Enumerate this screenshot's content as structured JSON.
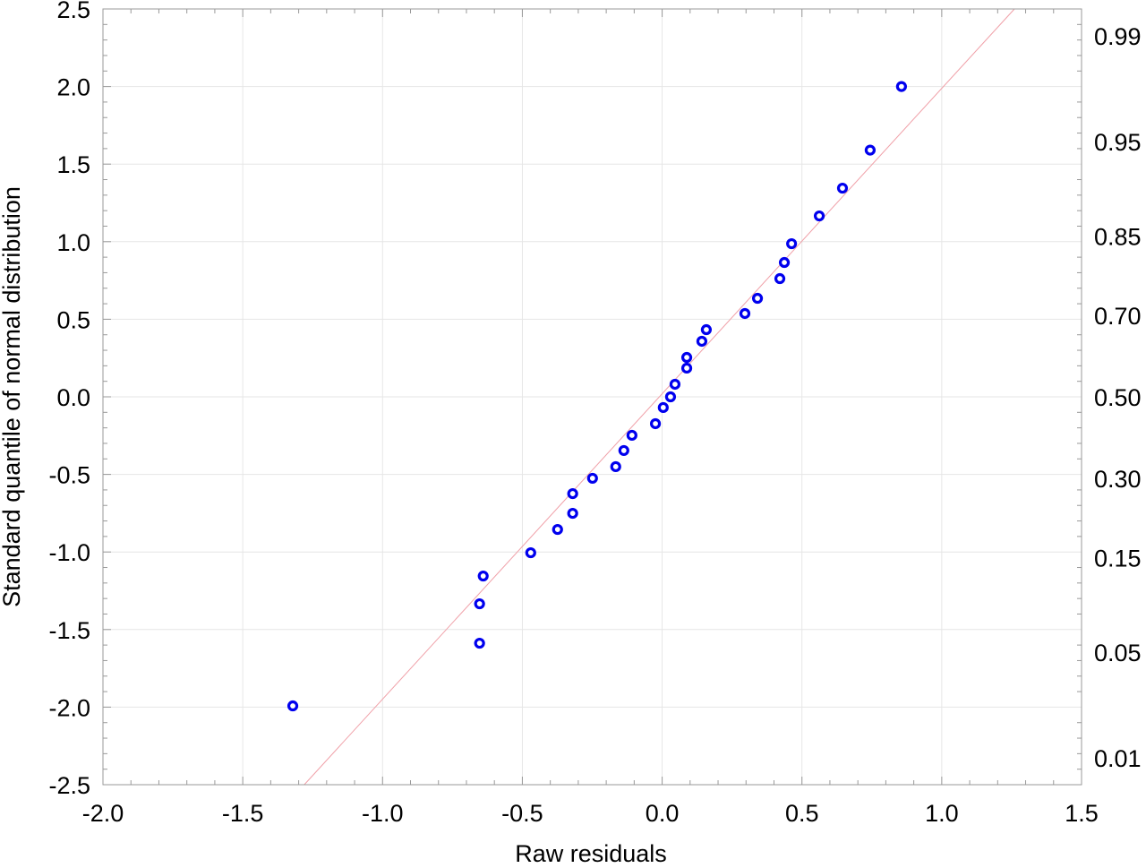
{
  "chart_data": {
    "type": "scatter",
    "title": "",
    "xlabel": "Raw residuals",
    "ylabel": "Standard quantile of normal distribution",
    "xlim": [
      -2.0,
      1.5
    ],
    "ylim": [
      -2.5,
      2.5
    ],
    "x_ticks": [
      "-2.0",
      "-1.5",
      "-1.0",
      "-0.5",
      "0.0",
      "0.5",
      "1.0",
      "1.5"
    ],
    "y_ticks": [
      "-2.5",
      "-2.0",
      "-1.5",
      "-1.0",
      "-0.5",
      "0.0",
      "0.5",
      "1.0",
      "1.5",
      "2.0",
      "2.5"
    ],
    "right_axis_ticks": [
      "0.01",
      "0.05",
      "0.15",
      "0.30",
      "0.50",
      "0.70",
      "0.85",
      "0.95",
      "0.99"
    ],
    "grid": true,
    "colors": {
      "points": "#0000ee",
      "reference_line": "#f0a0a8",
      "grid": "#e6e6e6"
    },
    "points": [
      {
        "x": 0.856,
        "y": 2.0
      },
      {
        "x": 0.744,
        "y": 1.59
      },
      {
        "x": 0.645,
        "y": 1.345
      },
      {
        "x": 0.562,
        "y": 1.166
      },
      {
        "x": 0.463,
        "y": 0.987
      },
      {
        "x": 0.437,
        "y": 0.866
      },
      {
        "x": 0.421,
        "y": 0.762
      },
      {
        "x": 0.341,
        "y": 0.635
      },
      {
        "x": 0.296,
        "y": 0.537
      },
      {
        "x": 0.158,
        "y": 0.433
      },
      {
        "x": 0.142,
        "y": 0.358
      },
      {
        "x": 0.088,
        "y": 0.254
      },
      {
        "x": 0.088,
        "y": 0.185
      },
      {
        "x": 0.046,
        "y": 0.081
      },
      {
        "x": 0.03,
        "y": 0.0
      },
      {
        "x": 0.004,
        "y": -0.069
      },
      {
        "x": -0.024,
        "y": -0.173
      },
      {
        "x": -0.108,
        "y": -0.248
      },
      {
        "x": -0.137,
        "y": -0.346
      },
      {
        "x": -0.166,
        "y": -0.45
      },
      {
        "x": -0.249,
        "y": -0.525
      },
      {
        "x": -0.32,
        "y": -0.624
      },
      {
        "x": -0.32,
        "y": -0.751
      },
      {
        "x": -0.374,
        "y": -0.855
      },
      {
        "x": -0.47,
        "y": -1.005
      },
      {
        "x": -0.64,
        "y": -1.155
      },
      {
        "x": -0.653,
        "y": -1.334
      },
      {
        "x": -0.653,
        "y": -1.588
      },
      {
        "x": -1.321,
        "y": -1.992
      }
    ],
    "reference_line": [
      {
        "x": -1.28,
        "y": -2.5
      },
      {
        "x": 1.26,
        "y": 2.5
      }
    ]
  }
}
